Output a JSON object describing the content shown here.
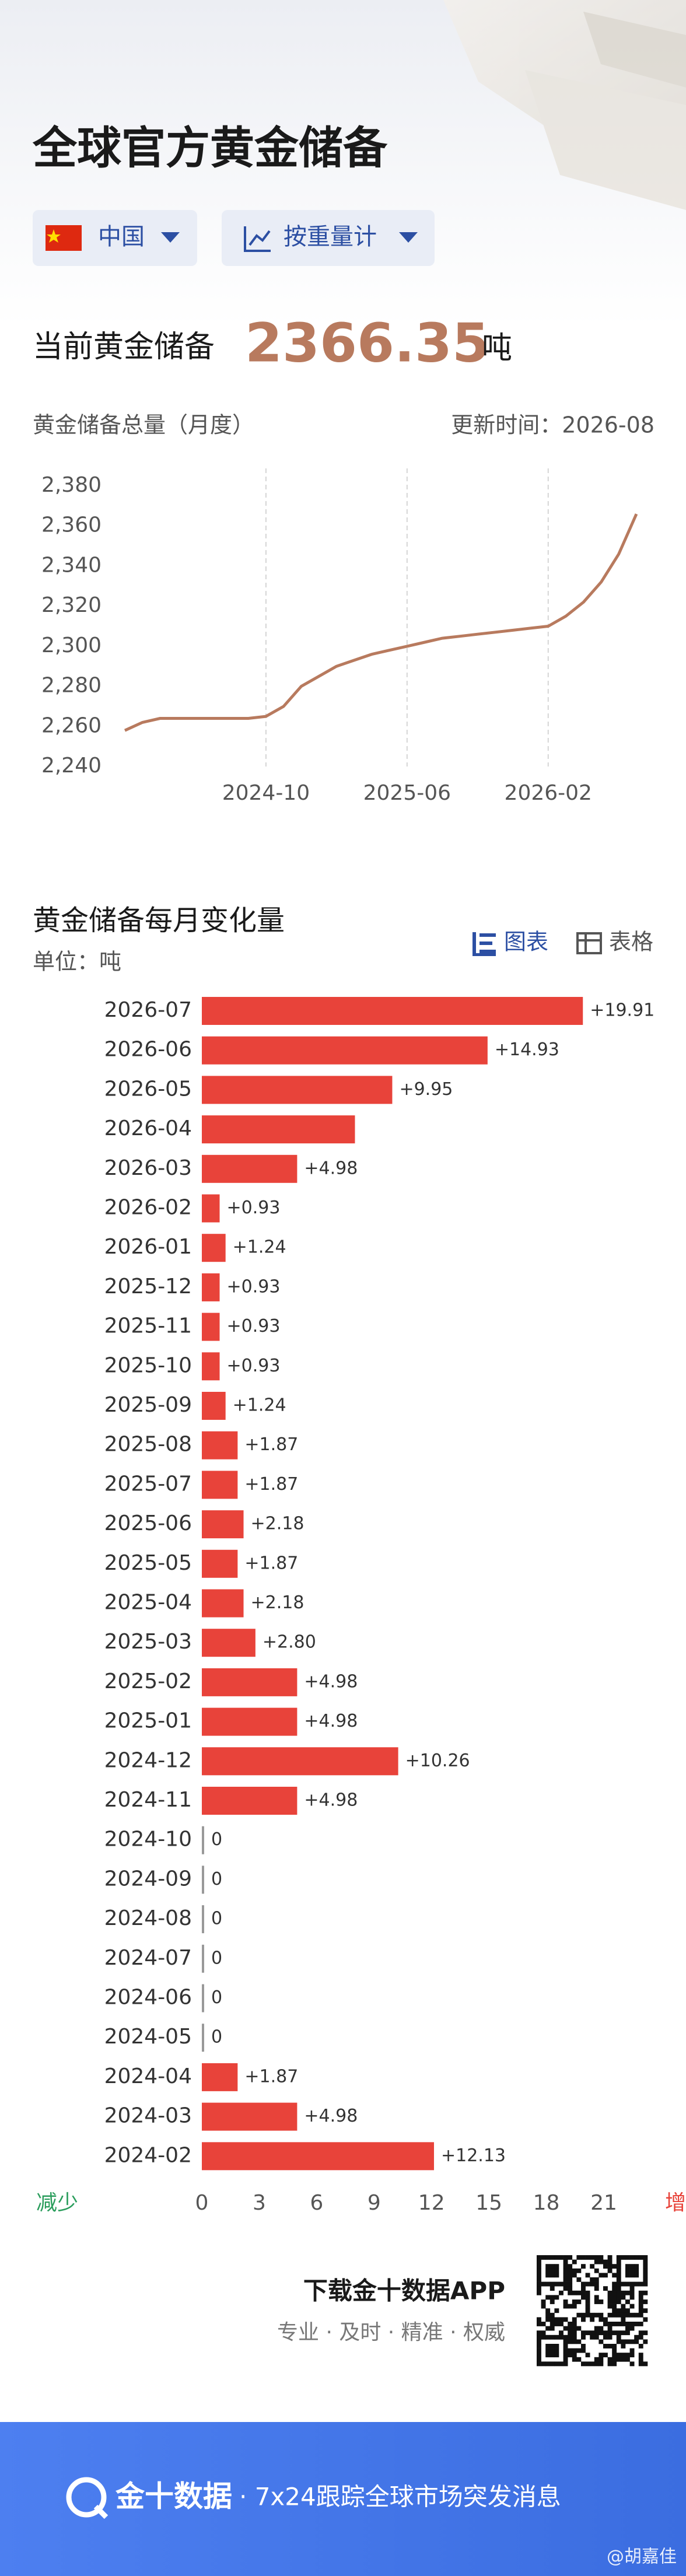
{
  "header": {
    "title": "全球官方黄金储备",
    "filters": [
      "中国",
      "按重量计"
    ]
  },
  "current": {
    "label": "当前黄金储备",
    "value": 2366.35,
    "unit": "吨"
  },
  "chart_data": [
    {
      "type": "line",
      "title": "黄金储备总量（月度）",
      "update_note": "更新时间：2026-08",
      "categories": [
        null,
        null,
        null,
        null,
        null,
        null,
        null,
        null,
        "2024-10",
        null,
        null,
        null,
        null,
        null,
        null,
        null,
        "2025-06",
        null,
        null,
        null,
        null,
        null,
        null,
        null,
        "2026-02",
        null,
        null,
        null,
        null,
        null
      ],
      "values": [
        2258,
        2262,
        2264,
        2264,
        2264,
        2264,
        2264,
        2264,
        2265,
        2270,
        2280,
        2285,
        2290,
        2293,
        2296,
        2298,
        2300,
        2302,
        2304,
        2305,
        2306,
        2307,
        2308,
        2309,
        2310,
        2315,
        2322,
        2332,
        2346,
        2366
      ],
      "color": "#b87a5e",
      "ylim": [
        2240,
        2380
      ],
      "yticks": [
        {
          "value": 2240,
          "label": "2,240"
        },
        {
          "value": 2260,
          "label": "2,260"
        },
        {
          "value": 2280,
          "label": "2,280"
        },
        {
          "value": 2300,
          "label": "2,300"
        },
        {
          "value": 2320,
          "label": "2,320"
        },
        {
          "value": 2340,
          "label": "2,340"
        },
        {
          "value": 2360,
          "label": "2,360"
        },
        {
          "value": 2380,
          "label": "2,380"
        }
      ],
      "grid": true
    },
    {
      "type": "bar",
      "orientation": "horizontal",
      "title": "黄金储备每月变化量",
      "unit_note": "单位：吨",
      "view_tabs": [
        "图表",
        "表格"
      ],
      "categories": [
        "2026-07",
        "2026-06",
        "2026-05",
        "2026-04",
        "2026-03",
        "2026-02",
        "2026-01",
        "2025-12",
        "2025-11",
        "2025-10",
        "2025-09",
        "2025-08",
        "2025-07",
        "2025-06",
        "2025-05",
        "2025-04",
        "2025-03",
        "2025-02",
        "2025-01",
        "2024-12",
        "2024-11",
        "2024-10",
        "2024-09",
        "2024-08",
        "2024-07",
        "2024-06",
        "2024-05",
        "2024-04",
        "2024-03",
        "2024-02"
      ],
      "values": [
        19.91,
        14.93,
        9.95,
        8,
        4.98,
        0.93,
        1.24,
        0.93,
        0.93,
        0.93,
        1.24,
        1.87,
        1.87,
        2.18,
        1.87,
        2.18,
        2.8,
        4.98,
        4.98,
        10.26,
        4.98,
        0,
        0,
        0,
        0,
        0,
        0,
        1.87,
        4.98,
        12.13
      ],
      "value_labels": [
        "+19.91",
        "+14.93",
        "+9.95",
        null,
        "+4.98",
        "+0.93",
        "+1.24",
        "+0.93",
        "+0.93",
        "+0.93",
        "+1.24",
        "+1.87",
        "+1.87",
        "+2.18",
        "+1.87",
        "+2.18",
        "+2.80",
        "+4.98",
        "+4.98",
        "+10.26",
        "+4.98",
        "0",
        "0",
        "0",
        "0",
        "0",
        "0",
        "+1.87",
        "+4.98",
        "+12.13"
      ],
      "color": "#e8433a",
      "xlim": [
        0,
        21
      ],
      "xticks": [
        0,
        3,
        6,
        9,
        12,
        15,
        18,
        21
      ],
      "negative_label": "减少",
      "positive_label": "增"
    }
  ],
  "footer": {
    "download": "下载金十数据APP",
    "slogan": "专业 · 及时 · 精准 · 权威"
  },
  "banner": {
    "brand": "金十数据",
    "tagline": "· 7x24跟踪全球市场突发消息",
    "credit": "@胡嘉佳"
  }
}
